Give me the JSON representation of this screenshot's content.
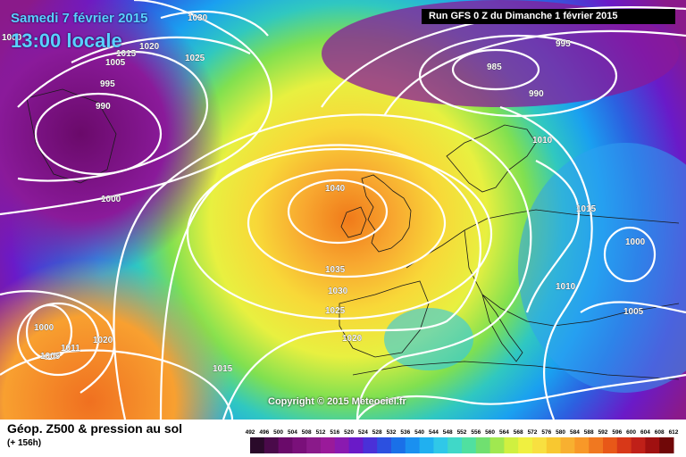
{
  "header": {
    "date": "Samedi 7 février 2015",
    "local_time": "13:00 locale",
    "run": "Run GFS 0 Z du Dimanche 1 février 2015"
  },
  "footer": {
    "title": "Géop. Z500 & pression au sol",
    "forecast_hour": "(+ 156h)",
    "copyright": "Copyright © 2015 Meteociel.fr"
  },
  "isobar_labels": [
    "1030",
    "1025",
    "1020",
    "1015",
    "1010",
    "1005",
    "1000",
    "995",
    "990",
    "985",
    "1040",
    "1035",
    "1030",
    "1025",
    "1020",
    "1015",
    "1010",
    "1005",
    "1000",
    "1000",
    "995",
    "990",
    "1015",
    "1020",
    "1005",
    "1011",
    "1000"
  ],
  "scale": {
    "ticks": [
      "492",
      "496",
      "500",
      "504",
      "508",
      "512",
      "516",
      "520",
      "524",
      "528",
      "532",
      "536",
      "540",
      "544",
      "548",
      "552",
      "556",
      "560",
      "564",
      "568",
      "572",
      "576",
      "580",
      "584",
      "588",
      "592",
      "596",
      "600",
      "604",
      "608",
      "612"
    ],
    "colors": [
      "#2a0a2a",
      "#4a0a4a",
      "#6a0a6a",
      "#7a107a",
      "#8a1a8a",
      "#9a1a9a",
      "#8a1ab0",
      "#6a1ac8",
      "#4a30d8",
      "#2c50e0",
      "#1a70e8",
      "#1a90f0",
      "#20b0f0",
      "#30c8e8",
      "#40d8c8",
      "#50e0a0",
      "#70e070",
      "#a0e850",
      "#d0f040",
      "#f0f040",
      "#f8e040",
      "#f8c830",
      "#f8b030",
      "#f89828",
      "#f07820",
      "#e85818",
      "#d83818",
      "#c02018",
      "#a01010",
      "#700808"
    ],
    "gradient_colors": [
      "#8a1a8a",
      "#2c50e0",
      "#30c8e8",
      "#70e070",
      "#f0f040",
      "#f8b030",
      "#e85818"
    ]
  }
}
